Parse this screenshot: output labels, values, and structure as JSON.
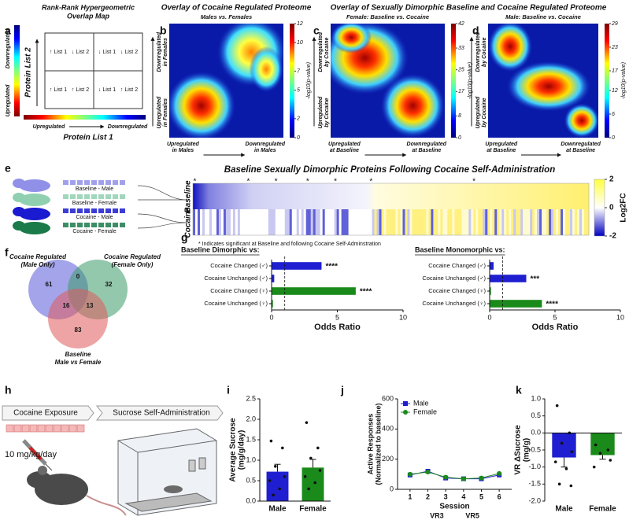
{
  "figure": {
    "panel_letters": [
      "a",
      "b",
      "c",
      "d",
      "e",
      "f",
      "g",
      "h",
      "i",
      "j",
      "k"
    ],
    "a": {
      "title_lines": [
        "Rank-Rank Hypergeometric",
        "Overlap Map"
      ],
      "y_axis": "Protein List 2",
      "x_axis": "Protein List 1",
      "y_top": "Downregulated",
      "y_bottom": "Upregulated",
      "x_left": "Upregulated",
      "x_right": "Downregulated",
      "quadrants": [
        [
          "↑ List 1",
          "↓ List 2"
        ],
        [
          "↓ List 1",
          "↓ List 2"
        ],
        [
          "↑ List 1",
          "↑ List 2"
        ],
        [
          "↓ List 1",
          "↑ List 2"
        ]
      ]
    },
    "row1_titles": [
      "Overlay of Cocaine Regulated Proteome",
      "Overlay of Sexually Dimorphic Baseline and Cocaine Regulated Proteome"
    ],
    "heatmaps": [
      {
        "subtitle": "Males vs. Females",
        "y_top": [
          "Downregulated",
          "in Females"
        ],
        "y_bottom": [
          "Upregulated",
          "in Females"
        ],
        "x_left": [
          "Upregulated",
          "in Males"
        ],
        "x_right": [
          "Downregulated",
          "in Males"
        ],
        "colorbar_label": "-log10(p-value)",
        "clim": [
          0,
          12
        ],
        "cticks": [
          0,
          2,
          5,
          7,
          10,
          12
        ]
      },
      {
        "subtitle": "Female: Baseline vs. Cocaine",
        "y_top": [
          "Downregulated",
          "by Cocaine"
        ],
        "y_bottom": [
          "Upregulated",
          "by Cocaine"
        ],
        "x_left": [
          "Upregulated",
          "at Baseline"
        ],
        "x_right": [
          "Downregulated",
          "at Baseline"
        ],
        "colorbar_label": "-log10(p-value)",
        "clim": [
          0,
          42
        ],
        "cticks": [
          0,
          8,
          17,
          25,
          33,
          42
        ]
      },
      {
        "subtitle": "Male: Baseline vs. Cocaine",
        "y_top": [
          "Downregulated",
          "by Cocaine"
        ],
        "y_bottom": [
          "Upregulated",
          "by Cocaine"
        ],
        "x_left": [
          "Upregulated",
          "at Baseline"
        ],
        "x_right": [
          "Downregulated",
          "at Baseline"
        ],
        "colorbar_label": "-log10(p-value)",
        "clim": [
          0,
          29
        ],
        "cticks": [
          0,
          6,
          12,
          17,
          23,
          29
        ]
      }
    ],
    "e": {
      "title": "Baseline Sexually Dimorphic Proteins Following Cocaine Self-Administration",
      "groups": [
        "Baseline - Male",
        "Baseline - Female",
        "Cocaine - Male",
        "Cocaine - Female"
      ],
      "rows": [
        "Baseline",
        "Cocaine"
      ],
      "star": "*",
      "footnote": "* Indicates significant at Baseline and following Cocaine Self-Adminstration",
      "colorbar_label": "Log2FC",
      "clim": [
        -2,
        2
      ],
      "cticks": [
        2,
        0,
        -2
      ]
    },
    "f": {
      "sets": [
        [
          "Cocaine Regulated",
          "(Male Only)"
        ],
        [
          "Cocaine Regulated",
          "(Female Only)"
        ],
        [
          "Baseline",
          "Male vs Female"
        ]
      ],
      "counts": [
        61,
        0,
        32,
        16,
        13,
        83
      ]
    },
    "h": {
      "steps": [
        "Cocaine Exposure",
        "Sucrose Self-Administration"
      ],
      "dose": "10 mg/kg/day"
    }
  },
  "chart_data": [
    {
      "type": "hbar",
      "title": "Baseline Dimorphic vs:",
      "categories": [
        "Cocaine Changed (♂)",
        "Cocaine Unchanged (♂)",
        "Cocaine Changed (♀)",
        "Cocaine Unchanged (♀)"
      ],
      "values": [
        3.8,
        0.2,
        6.4,
        0.1
      ],
      "colors": [
        "#1f1fd1",
        "#1f1fd1",
        "#1a8a1a",
        "#1a8a1a"
      ],
      "significance": [
        "****",
        null,
        "****",
        null
      ],
      "xlabel": "Odds Ratio",
      "xlim": [
        0,
        10
      ],
      "xticks": [
        0,
        5,
        10
      ],
      "ref_line": 1
    },
    {
      "type": "hbar",
      "title": "Baseline Monomorphic vs:",
      "categories": [
        "Cocaine Changed (♂)",
        "Cocaine Unchanged (♂)",
        "Cocaine Changed (♀)",
        "Cocaine Unchanged (♀)"
      ],
      "values": [
        0.3,
        2.8,
        0.1,
        4.0
      ],
      "colors": [
        "#1f1fd1",
        "#1f1fd1",
        "#1a8a1a",
        "#1a8a1a"
      ],
      "significance": [
        null,
        "***",
        null,
        "****"
      ],
      "xlabel": "Odds Ratio",
      "xlim": [
        0,
        10
      ],
      "xticks": [
        0,
        5,
        10
      ],
      "ref_line": 1
    },
    {
      "type": "bar",
      "ylabel": [
        "Average Sucrose",
        "(mg/g/day)"
      ],
      "categories": [
        "Male",
        "Female"
      ],
      "values": [
        0.72,
        0.82
      ],
      "errors": [
        0.18,
        0.2
      ],
      "colors": [
        "#1f1fd1",
        "#1a8a1a"
      ],
      "points": [
        [
          1.47,
          1.3,
          0.85,
          0.6,
          0.5,
          0.3,
          0.15
        ],
        [
          1.92,
          1.3,
          1.05,
          0.75,
          0.6,
          0.45,
          0.3
        ]
      ],
      "ylim": [
        0,
        2.5
      ],
      "yticks": [
        {
          "value": 0,
          "label": "0.0"
        },
        {
          "value": 0.5,
          "label": "0.5"
        },
        {
          "value": 1,
          "label": "1.0"
        },
        {
          "value": 1.5,
          "label": "1.5"
        },
        {
          "value": 2,
          "label": "2.0"
        },
        {
          "value": 2.5,
          "label": "2.5"
        }
      ]
    },
    {
      "type": "line",
      "xlabel": "Session",
      "ylabel": [
        "Active Responses",
        "(Normalized to baseline)"
      ],
      "x": [
        1,
        2,
        3,
        4,
        5,
        6
      ],
      "series": [
        {
          "name": "Male",
          "color": "#1f1fd1",
          "marker": "square",
          "values": [
            95,
            120,
            75,
            70,
            70,
            95
          ]
        },
        {
          "name": "Female",
          "color": "#1a8a1a",
          "marker": "circle",
          "values": [
            100,
            115,
            80,
            70,
            75,
            105
          ]
        }
      ],
      "legend": "upper left",
      "xlim": [
        0.3,
        6.7
      ],
      "xticks": [
        1,
        2,
        3,
        4,
        5,
        6
      ],
      "ylim": [
        0,
        600
      ],
      "yticks": [
        0,
        200,
        400,
        600
      ],
      "annotations": [
        {
          "text": "VR3",
          "x": 2.5
        },
        {
          "text": "VR5",
          "x": 4.5
        }
      ]
    },
    {
      "type": "bar",
      "ylabel": [
        "VR ΔSucrose",
        "(mg/g)"
      ],
      "categories": [
        "Male",
        "Female"
      ],
      "values": [
        -0.72,
        -0.65
      ],
      "errors": [
        0.28,
        0.12
      ],
      "colors": [
        "#1f1fd1",
        "#1a8a1a"
      ],
      "points": [
        [
          0.8,
          0.0,
          -0.3,
          -0.55,
          -0.85,
          -1.05,
          -1.5,
          -1.55
        ],
        [
          -0.35,
          -0.5,
          -0.6,
          -0.8,
          -1.0
        ]
      ],
      "ylim": [
        -2,
        1
      ],
      "yticks": [
        {
          "value": -2,
          "label": "-2.0"
        },
        {
          "value": -1.5,
          "label": "-1.5"
        },
        {
          "value": -1,
          "label": "-1.0"
        },
        {
          "value": -0.5,
          "label": "-0.5"
        },
        {
          "value": 0,
          "label": "0.0"
        },
        {
          "value": 0.5,
          "label": "0.5"
        },
        {
          "value": 1,
          "label": "1.0"
        }
      ]
    }
  ]
}
